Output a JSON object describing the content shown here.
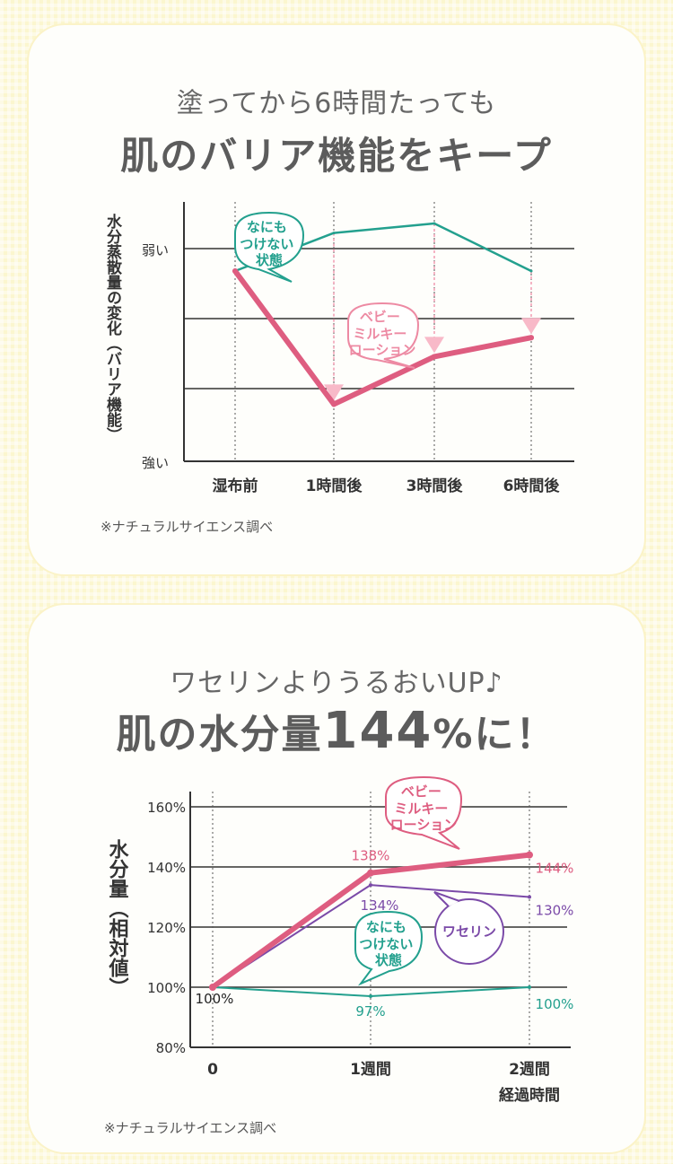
{
  "chart_data": [
    {
      "type": "line",
      "subtitle": "塗ってから6時間たっても",
      "title": "肌のバリア機能をキープ",
      "ylabel": "水分蒸散量の変化（バリア機能）",
      "y_top_label": "弱い",
      "y_bottom_label": "強い",
      "categories": [
        "湿布前",
        "1時間後",
        "3時間後",
        "6時間後"
      ],
      "ylim": [
        0,
        3
      ],
      "series": [
        {
          "name": "なにもつけない状態",
          "values": [
            2.0,
            2.4,
            2.5,
            2.0
          ],
          "color": "#23a08e"
        },
        {
          "name": "ベビーミルキーローション",
          "values": [
            2.0,
            0.6,
            1.1,
            1.3
          ],
          "color": "#de5d80"
        }
      ],
      "note": "※ナチュラルサイエンス調べ"
    },
    {
      "type": "line",
      "subtitle": "ワセリンよりうるおいUP♪",
      "title_prefix": "肌の水分量",
      "title_number": "144",
      "title_suffix": "%に！",
      "ylabel": "水分量（相対値）",
      "categories": [
        "0",
        "1週間",
        "2週間"
      ],
      "xlabel": "経過時間",
      "yticks": [
        "160%",
        "140%",
        "120%",
        "100%",
        "80%"
      ],
      "ylim": [
        80,
        160
      ],
      "series": [
        {
          "name": "ベビーミルキーローション",
          "values": [
            100,
            138,
            144
          ],
          "labels": [
            "",
            "138%",
            "144%"
          ],
          "color": "#de5d80"
        },
        {
          "name": "ワセリン",
          "values": [
            100,
            134,
            130
          ],
          "labels": [
            "",
            "134%",
            "130%"
          ],
          "color": "#7b4aa8"
        },
        {
          "name": "なにもつけない状態",
          "values": [
            100,
            97,
            100
          ],
          "labels": [
            "100%",
            "97%",
            "100%"
          ],
          "color": "#23a08e"
        }
      ],
      "note": "※ナチュラルサイエンス調べ"
    }
  ],
  "callouts": {
    "none1": [
      "なにも",
      "つけない",
      "状態"
    ],
    "baby1": [
      "ベビー",
      "ミルキー",
      "ローション"
    ],
    "baby2": [
      "ベビー",
      "ミルキー",
      "ローション"
    ],
    "vaseline": [
      "ワセリン"
    ],
    "none2": [
      "なにも",
      "つけない",
      "状態"
    ]
  }
}
